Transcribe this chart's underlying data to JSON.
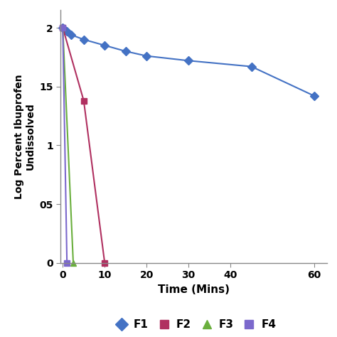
{
  "F1": {
    "x": [
      0,
      1,
      2,
      5,
      10,
      15,
      20,
      30,
      45,
      60
    ],
    "y": [
      2.0,
      1.97,
      1.94,
      1.9,
      1.85,
      1.8,
      1.76,
      1.72,
      1.67,
      1.42
    ],
    "color": "#4472C4",
    "marker": "D",
    "label": "F1"
  },
  "F2": {
    "x": [
      0,
      5,
      10
    ],
    "y": [
      2.0,
      1.38,
      0.0
    ],
    "color": "#B03060",
    "marker": "s",
    "label": "F2"
  },
  "F3": {
    "x": [
      0,
      2.5
    ],
    "y": [
      2.0,
      0.0
    ],
    "color": "#6AAF3D",
    "marker": "^",
    "label": "F3"
  },
  "F4": {
    "x": [
      0,
      1.0
    ],
    "y": [
      2.0,
      0.0
    ],
    "color": "#7B68CC",
    "marker": "s",
    "label": "F4"
  },
  "xlabel": "Time (Mins)",
  "ylabel": "Log Percent Ibuprofen\nUndissolved",
  "xlim": [
    -0.5,
    63
  ],
  "ylim": [
    0,
    2.15
  ],
  "yticks": [
    0,
    0.5,
    1,
    1.5,
    2
  ],
  "ytick_labels": [
    "0",
    "05",
    "1",
    "15",
    "2"
  ],
  "xticks": [
    0,
    10,
    20,
    30,
    40,
    60
  ],
  "xlabel_fontsize": 11,
  "ylabel_fontsize": 10,
  "tick_fontsize": 10,
  "legend_fontsize": 10,
  "figure_bg": "#FFFFFF",
  "axes_bg": "#FFFFFF",
  "linewidth": 1.5,
  "markersize": 6
}
